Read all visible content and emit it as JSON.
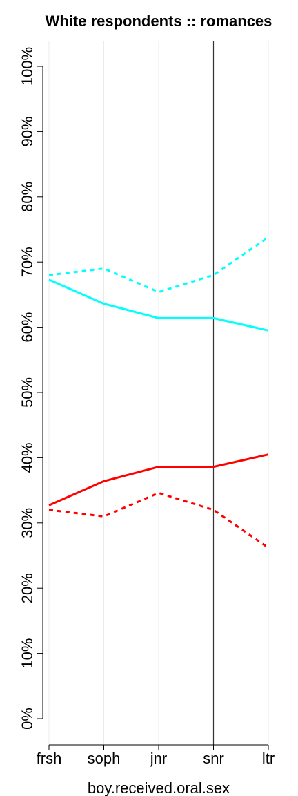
{
  "chart_data": {
    "type": "line",
    "title": "White respondents :: romances",
    "xlabel": "boy.received.oral.sex",
    "ylabel": "",
    "categories": [
      "frsh",
      "soph",
      "jnr",
      "snr",
      "ltr"
    ],
    "ylim": [
      0,
      100
    ],
    "y_ticks": [
      "0%",
      "10%",
      "20%",
      "30%",
      "40%",
      "50%",
      "60%",
      "70%",
      "80%",
      "90%",
      "100%"
    ],
    "y_tick_values": [
      0,
      10,
      20,
      30,
      40,
      50,
      60,
      70,
      80,
      90,
      100
    ],
    "reference_line_category": "snr",
    "grid": "vertical",
    "series": [
      {
        "values": [
          67.3,
          63.6,
          61.4,
          61.4,
          59.5
        ],
        "color": "#00ffff",
        "style": "solid"
      },
      {
        "values": [
          68.0,
          69.0,
          65.4,
          68.0,
          73.8
        ],
        "color": "#00ffff",
        "style": "dashed"
      },
      {
        "values": [
          32.7,
          36.4,
          38.6,
          38.6,
          40.5
        ],
        "color": "#ff0000",
        "style": "solid"
      },
      {
        "values": [
          32.0,
          31.0,
          34.6,
          32.0,
          26.2
        ],
        "color": "#ff0000",
        "style": "dashed"
      }
    ]
  }
}
